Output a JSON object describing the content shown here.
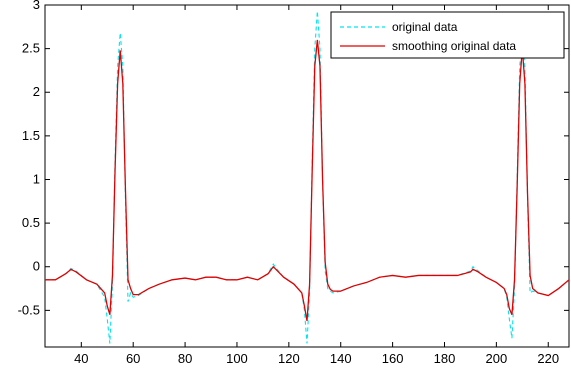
{
  "chart_data": {
    "type": "line",
    "title": "",
    "xlabel": "",
    "ylabel": "",
    "xlim": [
      26,
      228
    ],
    "ylim": [
      -0.92,
      3.0
    ],
    "xticks": [
      40,
      60,
      80,
      100,
      120,
      140,
      160,
      180,
      200,
      220
    ],
    "yticks": [
      -0.5,
      0,
      0.5,
      1,
      1.5,
      2,
      2.5,
      3
    ],
    "xtick_labels": [
      "40",
      "60",
      "80",
      "100",
      "120",
      "140",
      "160",
      "180",
      "200",
      "220"
    ],
    "ytick_labels": [
      "-0.5",
      "0",
      "0.5",
      "1",
      "1.5",
      "2",
      "2.5",
      "3"
    ],
    "grid": false,
    "legend_position": "top-right",
    "series": [
      {
        "name": "original data",
        "color": "#00e5ee",
        "style": "dashed",
        "x": [
          26,
          30,
          34,
          36,
          38,
          42,
          46,
          49,
          50,
          51,
          52,
          53,
          54,
          55,
          56,
          57,
          58,
          59,
          60,
          62,
          66,
          70,
          75,
          80,
          84,
          88,
          92,
          96,
          100,
          104,
          108,
          112,
          114,
          116,
          118,
          122,
          125,
          126,
          127,
          128,
          129,
          130,
          131,
          132,
          133,
          134,
          135,
          136,
          137,
          140,
          145,
          150,
          155,
          160,
          165,
          170,
          175,
          180,
          185,
          190,
          191,
          193,
          196,
          200,
          203,
          204,
          205,
          206,
          207,
          208,
          209,
          210,
          211,
          212,
          213,
          214,
          216,
          220,
          224,
          228
        ],
        "y": [
          -0.15,
          -0.15,
          -0.08,
          -0.02,
          -0.05,
          -0.15,
          -0.2,
          -0.35,
          -0.6,
          -0.88,
          -0.2,
          1.2,
          2.3,
          2.68,
          2.3,
          0.8,
          -0.4,
          -0.3,
          -0.35,
          -0.33,
          -0.25,
          -0.2,
          -0.15,
          -0.13,
          -0.15,
          -0.12,
          -0.12,
          -0.15,
          -0.15,
          -0.12,
          -0.15,
          -0.08,
          0.03,
          -0.05,
          -0.12,
          -0.2,
          -0.3,
          -0.5,
          -0.88,
          -0.3,
          1.2,
          2.5,
          2.93,
          2.5,
          1.0,
          -0.05,
          -0.25,
          -0.28,
          -0.3,
          -0.28,
          -0.22,
          -0.18,
          -0.12,
          -0.1,
          -0.12,
          -0.1,
          -0.1,
          -0.1,
          -0.1,
          -0.05,
          0.0,
          -0.05,
          -0.12,
          -0.18,
          -0.25,
          -0.35,
          -0.6,
          -0.82,
          -0.25,
          1.0,
          2.3,
          2.6,
          2.3,
          0.8,
          -0.3,
          -0.28,
          -0.3,
          -0.33,
          -0.25,
          -0.15
        ]
      },
      {
        "name": "smoothing original data",
        "color": "#e00000",
        "style": "solid",
        "x": [
          26,
          30,
          34,
          36,
          38,
          42,
          46,
          49,
          50,
          51,
          52,
          53,
          54,
          55,
          56,
          57,
          58,
          59,
          60,
          62,
          66,
          70,
          75,
          80,
          84,
          88,
          92,
          96,
          100,
          104,
          108,
          112,
          114,
          116,
          118,
          122,
          125,
          126,
          127,
          128,
          129,
          130,
          131,
          132,
          133,
          134,
          135,
          136,
          137,
          140,
          145,
          150,
          155,
          160,
          165,
          170,
          175,
          180,
          185,
          190,
          191,
          193,
          196,
          200,
          203,
          204,
          205,
          206,
          207,
          208,
          209,
          210,
          211,
          212,
          213,
          214,
          216,
          220,
          224,
          228
        ],
        "y": [
          -0.15,
          -0.15,
          -0.08,
          -0.03,
          -0.06,
          -0.15,
          -0.2,
          -0.3,
          -0.45,
          -0.55,
          -0.1,
          1.1,
          2.1,
          2.48,
          2.1,
          0.9,
          -0.15,
          -0.25,
          -0.32,
          -0.32,
          -0.25,
          -0.2,
          -0.15,
          -0.13,
          -0.15,
          -0.12,
          -0.12,
          -0.15,
          -0.15,
          -0.12,
          -0.15,
          -0.08,
          0.0,
          -0.06,
          -0.12,
          -0.2,
          -0.3,
          -0.45,
          -0.62,
          -0.2,
          1.1,
          2.3,
          2.6,
          2.3,
          1.0,
          0.05,
          -0.2,
          -0.26,
          -0.28,
          -0.28,
          -0.22,
          -0.18,
          -0.12,
          -0.1,
          -0.12,
          -0.1,
          -0.1,
          -0.1,
          -0.1,
          -0.06,
          -0.03,
          -0.06,
          -0.12,
          -0.18,
          -0.25,
          -0.32,
          -0.48,
          -0.55,
          -0.15,
          0.9,
          2.1,
          2.5,
          2.1,
          0.85,
          -0.1,
          -0.25,
          -0.3,
          -0.33,
          -0.25,
          -0.15
        ]
      }
    ]
  }
}
